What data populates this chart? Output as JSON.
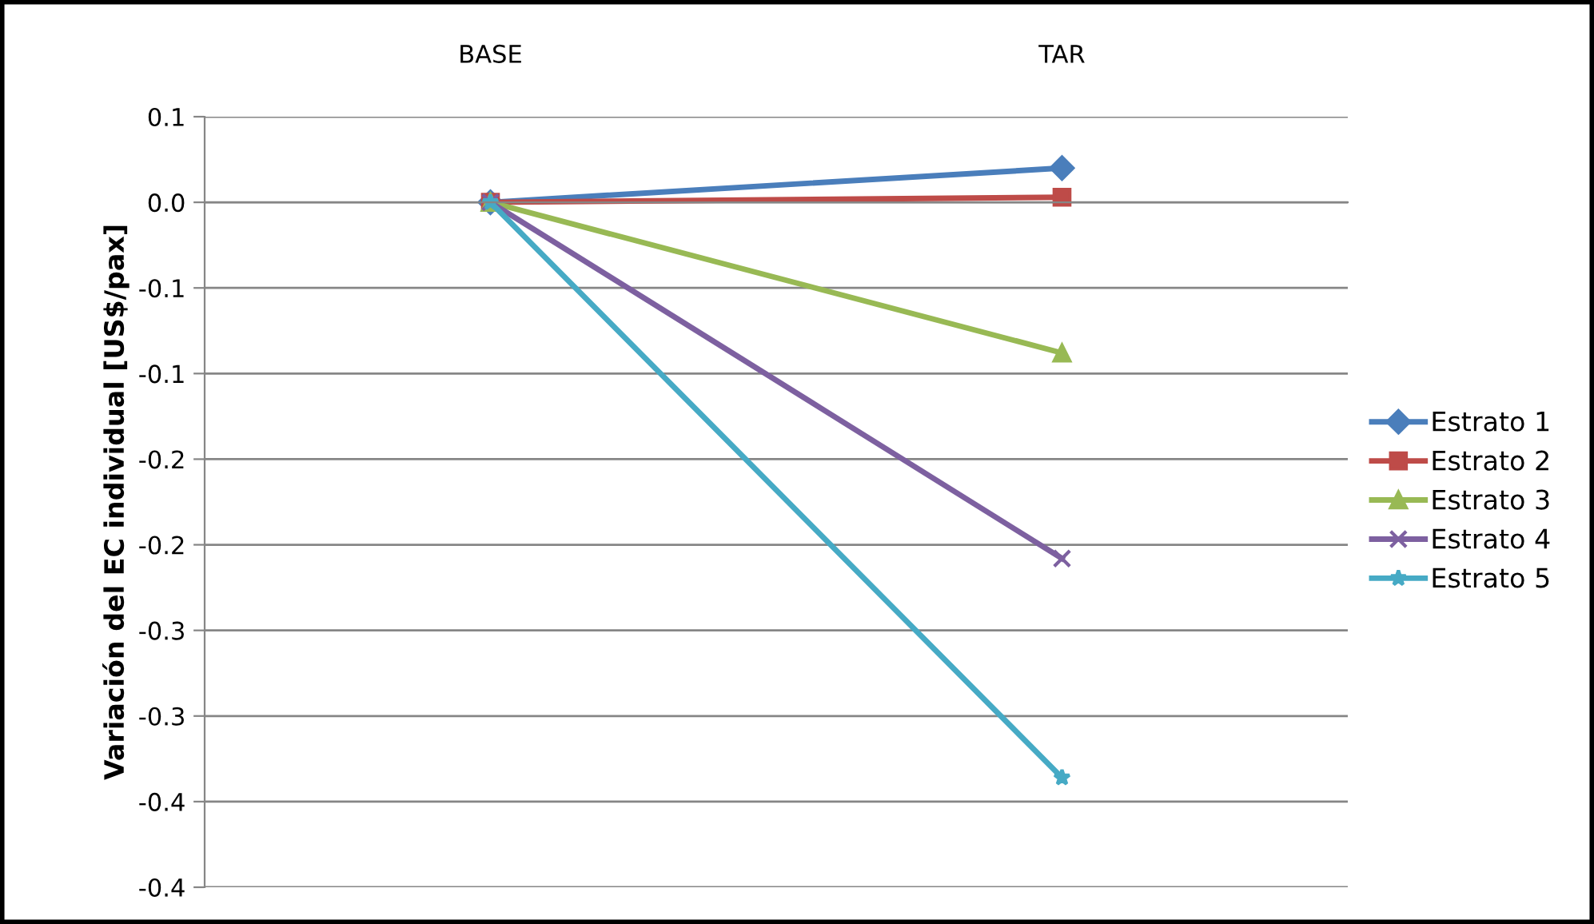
{
  "chart_data": {
    "type": "line",
    "ylabel": "Variación del EC individual [US$/pax]",
    "categories": [
      "BASE",
      "TAR"
    ],
    "series": [
      {
        "name": "Estrato 1",
        "color": "#4a7ebb",
        "marker": "diamond",
        "values": [
          0,
          0.02
        ]
      },
      {
        "name": "Estrato 2",
        "color": "#be4b48",
        "marker": "square",
        "values": [
          0,
          0.003
        ]
      },
      {
        "name": "Estrato 3",
        "color": "#98b954",
        "marker": "triangle",
        "values": [
          0,
          -0.088
        ]
      },
      {
        "name": "Estrato 4",
        "color": "#7d60a0",
        "marker": "cross",
        "values": [
          0,
          -0.208
        ]
      },
      {
        "name": "Estrato 5",
        "color": "#46aac5",
        "marker": "star",
        "values": [
          0,
          -0.336
        ]
      }
    ],
    "ylim": [
      -0.4,
      0.05
    ],
    "yticks": [
      {
        "value": 0.05,
        "label": "0.1"
      },
      {
        "value": 0,
        "label": "0.0"
      },
      {
        "value": -0.05,
        "label": "-0.1"
      },
      {
        "value": -0.1,
        "label": "-0.1"
      },
      {
        "value": -0.15,
        "label": "-0.2"
      },
      {
        "value": -0.2,
        "label": "-0.2"
      },
      {
        "value": -0.25,
        "label": "-0.3"
      },
      {
        "value": -0.3,
        "label": "-0.3"
      },
      {
        "value": -0.35,
        "label": "-0.4"
      },
      {
        "value": -0.4,
        "label": "-0.4"
      }
    ],
    "grid": "y",
    "legend": "right"
  }
}
